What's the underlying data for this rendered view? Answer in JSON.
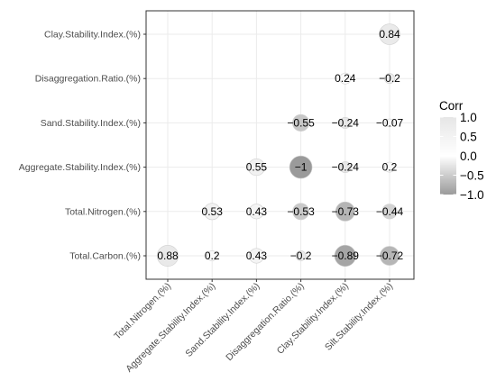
{
  "chart_data": {
    "type": "heatmap",
    "subtype": "correlation-circle-matrix",
    "rows": [
      "Clay.Stability.Index.(%)",
      "Disaggregation.Ratio.(%)",
      "Sand.Stability.Index.(%)",
      "Aggregate.Stability.Index.(%)",
      "Total.Nitrogen.(%)",
      "Total.Carbon.(%)"
    ],
    "columns": [
      "Total.Nitrogen.(%)",
      "Aggregate.Stability.Index.(%)",
      "Sand.Stability.Index.(%)",
      "Disaggregation.Ratio.(%)",
      "Clay.Stability.Index.(%)",
      "Silt.Stability.Index.(%)"
    ],
    "cells": [
      {
        "row": "Clay.Stability.Index.(%)",
        "col": "Silt.Stability.Index.(%)",
        "value": 0.84,
        "label": "0.84"
      },
      {
        "row": "Disaggregation.Ratio.(%)",
        "col": "Clay.Stability.Index.(%)",
        "value": 0.24,
        "label": "0.24"
      },
      {
        "row": "Disaggregation.Ratio.(%)",
        "col": "Silt.Stability.Index.(%)",
        "value": -0.2,
        "label": "-0.2"
      },
      {
        "row": "Sand.Stability.Index.(%)",
        "col": "Disaggregation.Ratio.(%)",
        "value": -0.55,
        "label": "-0.55"
      },
      {
        "row": "Sand.Stability.Index.(%)",
        "col": "Clay.Stability.Index.(%)",
        "value": -0.24,
        "label": "-0.24"
      },
      {
        "row": "Sand.Stability.Index.(%)",
        "col": "Silt.Stability.Index.(%)",
        "value": -0.07,
        "label": "-0.07"
      },
      {
        "row": "Aggregate.Stability.Index.(%)",
        "col": "Sand.Stability.Index.(%)",
        "value": 0.55,
        "label": "0.55"
      },
      {
        "row": "Aggregate.Stability.Index.(%)",
        "col": "Disaggregation.Ratio.(%)",
        "value": -1,
        "label": "-1"
      },
      {
        "row": "Aggregate.Stability.Index.(%)",
        "col": "Clay.Stability.Index.(%)",
        "value": -0.24,
        "label": "-0.24"
      },
      {
        "row": "Aggregate.Stability.Index.(%)",
        "col": "Silt.Stability.Index.(%)",
        "value": 0.2,
        "label": "0.2"
      },
      {
        "row": "Total.Nitrogen.(%)",
        "col": "Aggregate.Stability.Index.(%)",
        "value": 0.53,
        "label": "0.53"
      },
      {
        "row": "Total.Nitrogen.(%)",
        "col": "Sand.Stability.Index.(%)",
        "value": 0.43,
        "label": "0.43"
      },
      {
        "row": "Total.Nitrogen.(%)",
        "col": "Disaggregation.Ratio.(%)",
        "value": -0.53,
        "label": "-0.53"
      },
      {
        "row": "Total.Nitrogen.(%)",
        "col": "Clay.Stability.Index.(%)",
        "value": -0.73,
        "label": "-0.73"
      },
      {
        "row": "Total.Nitrogen.(%)",
        "col": "Silt.Stability.Index.(%)",
        "value": -0.44,
        "label": "-0.44"
      },
      {
        "row": "Total.Carbon.(%)",
        "col": "Total.Nitrogen.(%)",
        "value": 0.88,
        "label": "0.88"
      },
      {
        "row": "Total.Carbon.(%)",
        "col": "Aggregate.Stability.Index.(%)",
        "value": 0.2,
        "label": "0.2"
      },
      {
        "row": "Total.Carbon.(%)",
        "col": "Sand.Stability.Index.(%)",
        "value": 0.43,
        "label": "0.43"
      },
      {
        "row": "Total.Carbon.(%)",
        "col": "Disaggregation.Ratio.(%)",
        "value": -0.2,
        "label": "-0.2"
      },
      {
        "row": "Total.Carbon.(%)",
        "col": "Clay.Stability.Index.(%)",
        "value": -0.89,
        "label": "-0.89"
      },
      {
        "row": "Total.Carbon.(%)",
        "col": "Silt.Stability.Index.(%)",
        "value": -0.72,
        "label": "-0.72"
      }
    ],
    "legend": {
      "title": "Corr",
      "position": "right",
      "ticks": [
        {
          "value": 1.0,
          "label": "1.0"
        },
        {
          "value": 0.5,
          "label": "0.5"
        },
        {
          "value": 0.0,
          "label": "0.0"
        },
        {
          "value": -0.5,
          "label": "−0.5"
        },
        {
          "value": -1.0,
          "label": "−1.0"
        }
      ],
      "range": [
        -1,
        1
      ],
      "color_low": "#9a9a9a",
      "color_mid": "#ffffff",
      "color_high": "#e6e6e6"
    },
    "grid": true,
    "x_labels_rotation": "45deg",
    "colors": {
      "panel_border": "#333333",
      "grid_line": "#ebebeb",
      "circle_stroke": "#d0d0d0"
    }
  }
}
